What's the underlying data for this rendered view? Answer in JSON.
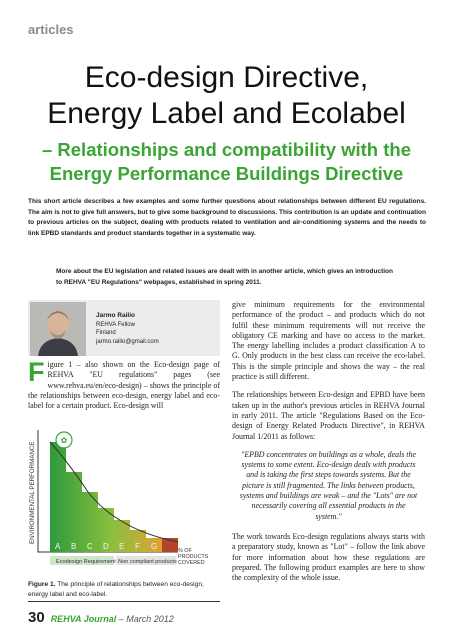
{
  "header": {
    "section": "articles",
    "title_line1": "Eco-design Directive,",
    "title_line2": "Energy Label and Ecolabel",
    "subtitle_line1": "– Relationships and compatibility with the",
    "subtitle_line2": "Energy Performance Buildings Directive"
  },
  "intro": "This short article describes a few examples and some further questions about relationships between different EU regulations. The aim is not to give full answers, but to give some background to discussions. This contribution is an update and continuation to previous articles on the subject, dealing with products related to ventilation and air-conditioning systems and the needs to link EPBD standards and product standards together in a systematic way.",
  "note": "More about the EU legislation and related issues are dealt with in another article, which gives an introduction to REHVA \"EU Regulations\" webpages, established in spring 2011.",
  "author": {
    "name": "Jarmo Railio",
    "role": "REHVA Fellow",
    "country": "Finland",
    "email": "jarmo.railio@gmail.com"
  },
  "left_column": {
    "drop_cap": "F",
    "paragraph": "igure 1 – also shown on the Eco-design page of REHVA \"EU regulations\" pages (see www.rehva.eu/en/eco-design) – shows the principle of the relationships between eco-design, energy label and eco-label for a certain product. Eco-design will"
  },
  "figure": {
    "y_axis_label": "ENVIRONMENTAL PERFORMANCE",
    "classes": [
      "A",
      "B",
      "C",
      "D",
      "E",
      "F",
      "G"
    ],
    "legend_ecodesign": "Ecodesign Requirements",
    "legend_noncompliant": "Non compliant products",
    "x_axis_label": "% OF PRODUCTS COVERED",
    "caption_label": "Figure 1.",
    "caption": "The principle of relationships between eco-design, energy label and eco-label."
  },
  "right_column": {
    "paragraphs": [
      "give minimum requirements for the environmental performance of the product – and products which do not fulfil these minimum requirements will not receive the obligatory CE marking and have no access to the market. The energy labelling includes a product classification A to G. Only products in the best class can receive the eco-label. This is the simple principle and shows the way – the real practice is still different.",
      "The relationships between Eco-design and EPBD have been taken up in the author's previous articles in REHVA Journal in early 2011. The article \"Regulations Based on the Eco-design of Energy Related Products Directive\", in REHVA Journal 1/2011 as follows:"
    ],
    "quote": "\"EPBD concentrates on buildings as a whole, deals the systems to some extent. Eco-design deals with products and is taking the first steps towards systems. But the picture is still fragmented. The links between products, systems and buildings are weak – and the \"Lots\" are not necessarily covering all essential products in the system.\"",
    "closing": "The work towards Eco-design regulations always starts with a preparatory study, known as \"Lot\" – follow the link above for more information about how these regulations are prepared. The following product examples are here to show the complexity of the whole issue."
  },
  "footer": {
    "page": "30",
    "journal": "REHVA Journal",
    "issue": "– March 2012"
  }
}
